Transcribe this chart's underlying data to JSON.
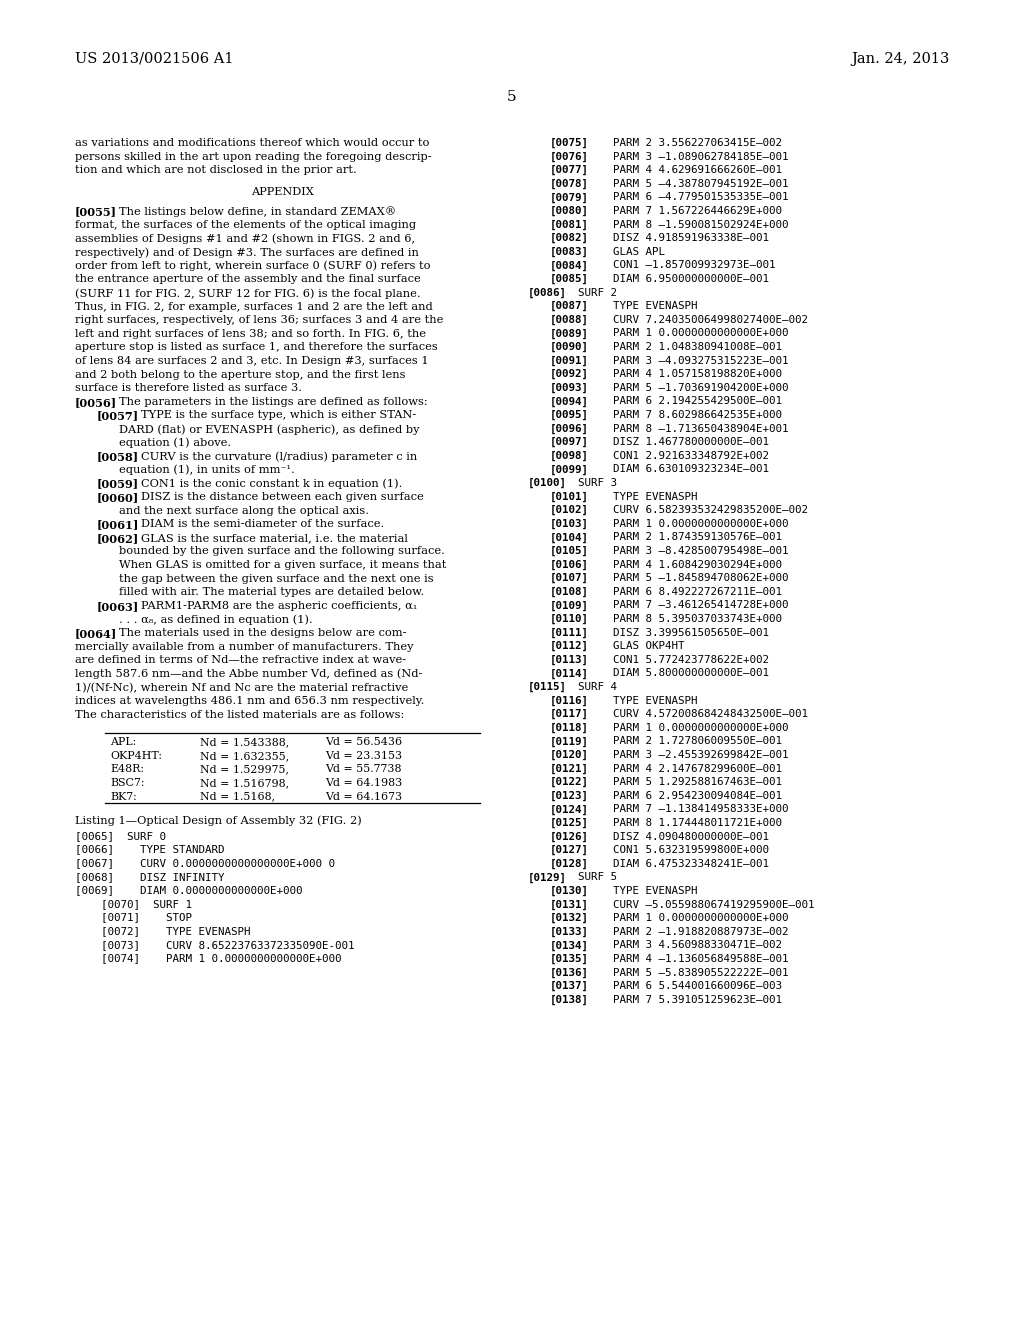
{
  "header_left": "US 2013/0021506 A1",
  "header_right": "Jan. 24, 2013",
  "page_number": "5",
  "bg": "#ffffff",
  "fg": "#000000",
  "table_rows": [
    [
      "APL:",
      "Nd = 1.543388,",
      "Vd = 56.5436"
    ],
    [
      "OKP4HT:",
      "Nd = 1.632355,",
      "Vd = 23.3153"
    ],
    [
      "E48R:",
      "Nd = 1.529975,",
      "Vd = 55.7738"
    ],
    [
      "BSC7:",
      "Nd = 1.516798,",
      "Vd = 64.1983"
    ],
    [
      "BK7:",
      "Nd = 1.5168,",
      "Vd = 64.1673"
    ]
  ]
}
